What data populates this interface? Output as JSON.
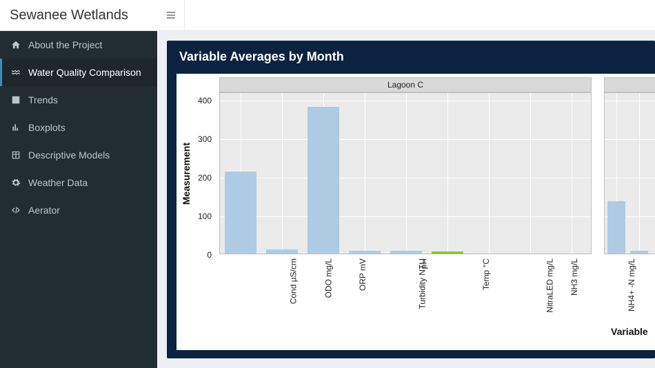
{
  "app": {
    "title": "Sewanee Wetlands"
  },
  "sidebar": {
    "items": [
      {
        "label": "About the Project"
      },
      {
        "label": "Water Quality Comparison"
      },
      {
        "label": "Trends"
      },
      {
        "label": "Boxplots"
      },
      {
        "label": "Descriptive Models"
      },
      {
        "label": "Weather Data"
      },
      {
        "label": "Aerator"
      }
    ]
  },
  "panel": {
    "title": "Variable Averages by Month"
  },
  "chart": {
    "type": "bar",
    "ylabel": "Measurement",
    "xlabel": "Variable",
    "ylim": [
      0,
      420
    ],
    "yticks": [
      0,
      100,
      200,
      300,
      400
    ],
    "background_color": "#ebebeb",
    "grid_color": "#ffffff",
    "strip_bg": "#d9d9d9",
    "categories": [
      "Cond µS/cm",
      "ODO mg/L",
      "ORP mV",
      "Turbidity NTU",
      "pH",
      "Temp °C",
      "NitraLED mg/L",
      "NH3 mg/L",
      "NH4+ -N mg/L"
    ],
    "facets": [
      {
        "title": "Lagoon C",
        "bars": [
          {
            "cat": "Cond µS/cm",
            "value": 212,
            "color": "#aecbe4"
          },
          {
            "cat": "ODO mg/L",
            "value": 10,
            "color": "#aecbe4"
          },
          {
            "cat": "ORP mV",
            "value": 380,
            "color": "#aecbe4"
          },
          {
            "cat": "Turbidity NTU",
            "value": 8,
            "color": "#aecbe4"
          },
          {
            "cat": "pH",
            "value": 8,
            "color": "#aecbe4"
          },
          {
            "cat": "Temp °C",
            "value": 6,
            "color": "#7fc81e"
          },
          {
            "cat": "NitraLED mg/L",
            "value": 0,
            "color": "#aecbe4"
          },
          {
            "cat": "NH3 mg/L",
            "value": 0,
            "color": "#aecbe4"
          },
          {
            "cat": "NH4+ -N mg/L",
            "value": 0,
            "color": "#aecbe4"
          }
        ]
      },
      {
        "title": "",
        "bars": [
          {
            "cat": "Cond µS/cm",
            "value": 135,
            "color": "#aecbe4"
          },
          {
            "cat": "ODO mg/L",
            "value": 7,
            "color": "#aecbe4"
          }
        ]
      }
    ]
  }
}
